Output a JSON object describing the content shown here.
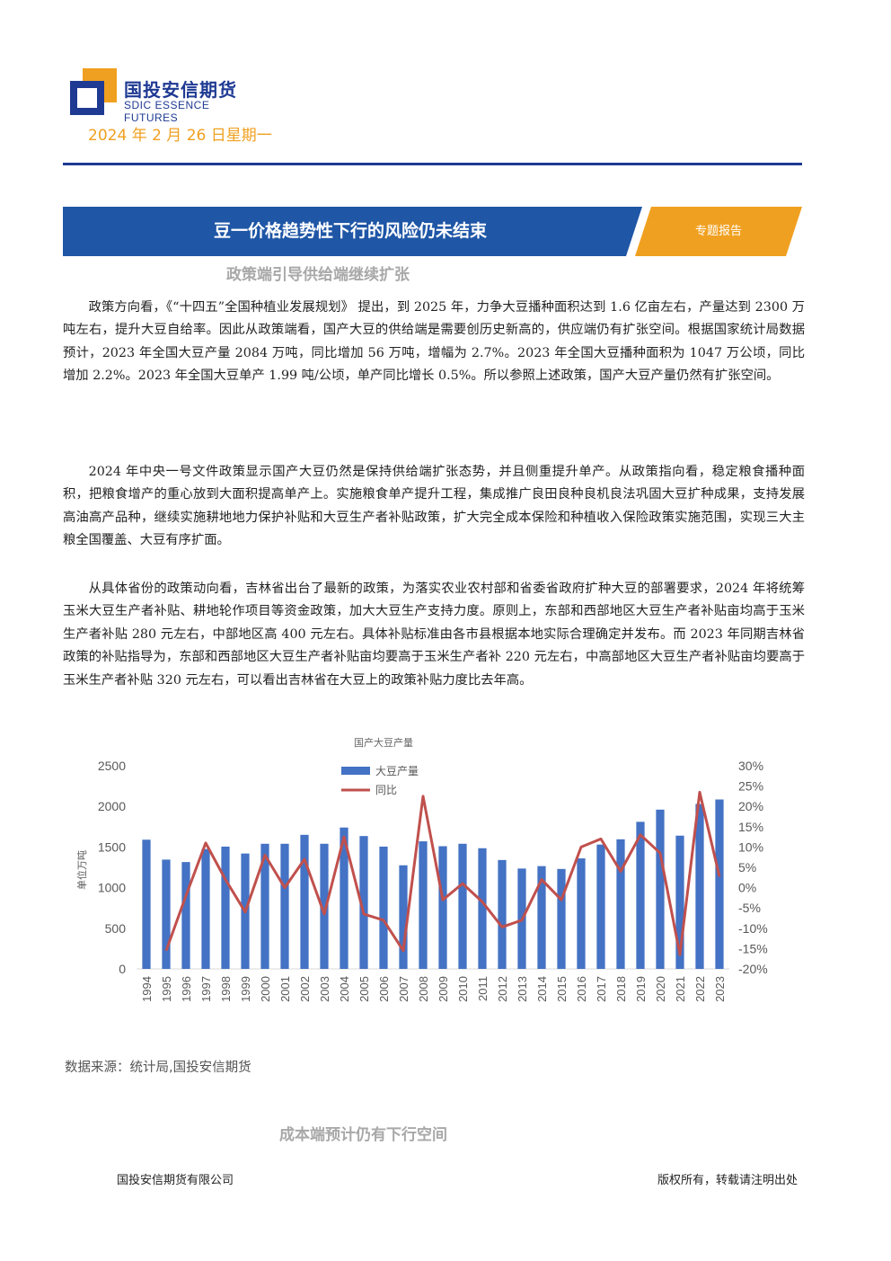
{
  "header": {
    "company_cn": "国投安信期货",
    "company_en": "SDIC ESSENCE FUTURES",
    "date": "2024 年 2 月 26 日星期一"
  },
  "banner": {
    "title": "豆一价格趋势性下行的风险仍未结束",
    "tag": "专题报告"
  },
  "sections": [
    {
      "heading": "政策端引导供给端继续扩张"
    },
    {
      "heading": "成本端预计仍有下行空间"
    }
  ],
  "paragraphs": [
    "政策方向看，《“十四五”全国种植业发展规划》 提出，到 2025 年，力争大豆播种面积达到 1.6 亿亩左右，产量达到 2300 万吨左右，提升大豆自给率。因此从政策端看，国产大豆的供给端是需要创历史新高的，供应端仍有扩张空间。根据国家统计局数据预计，2023 年全国大豆产量 2084 万吨，同比增加 56 万吨，增幅为 2.7%。2023 年全国大豆播种面积为 1047 万公顷，同比增加 2.2%。2023 年全国大豆单产 1.99 吨/公顷，单产同比增长 0.5%。所以参照上述政策，国产大豆产量仍然有扩张空间。",
    "2024 年中央一号文件政策显示国产大豆仍然是保持供给端扩张态势，并且侧重提升单产。从政策指向看，稳定粮食播种面积，把粮食增产的重心放到大面积提高单产上。实施粮食单产提升工程，集成推广良田良种良机良法巩固大豆扩种成果，支持发展高油高产品种，继续实施耕地地力保护补贴和大豆生产者补贴政策，扩大完全成本保险和种植收入保险政策实施范围，实现三大主粮全国覆盖、大豆有序扩面。",
    "从具体省份的政策动向看，吉林省出台了最新的政策，为落实农业农村部和省委省政府扩种大豆的部署要求，2024 年将统筹玉米大豆生产者补贴、耕地轮作项目等资金政策，加大大豆生产支持力度。原则上，东部和西部地区大豆生产者补贴亩均高于玉米生产者补贴 280 元左右，中部地区高 400 元左右。具体补贴标准由各市县根据本地实际合理确定并发布。而 2023 年同期吉林省政策的补贴指导为，东部和西部地区大豆生产者补贴亩均要高于玉米生产者补 220 元左右，中高部地区大豆生产者补贴亩均要高于玉米生产者补贴 320 元左右，可以看出吉林省在大豆上的政策补贴力度比去年高。"
  ],
  "chart_data": {
    "type": "bar",
    "title": "国产大豆产量",
    "ylabel": "单位万吨",
    "y2label": "",
    "ylim": [
      0,
      2500
    ],
    "y2lim": [
      -0.2,
      0.3
    ],
    "yticks": [
      "2500",
      "2000",
      "1500",
      "1000",
      "500",
      "0"
    ],
    "y2ticks": [
      "30%",
      "25%",
      "20%",
      "15%",
      "10%",
      "5%",
      "0%",
      "-5%",
      "-10%",
      "-15%",
      "-20%"
    ],
    "legend_position": "top-left",
    "categories": [
      "1994",
      "1995",
      "1996",
      "1997",
      "1998",
      "1999",
      "2000",
      "2001",
      "2002",
      "2003",
      "2004",
      "2005",
      "2006",
      "2007",
      "2008",
      "2009",
      "2010",
      "2011",
      "2012",
      "2013",
      "2014",
      "2015",
      "2016",
      "2017",
      "2018",
      "2019",
      "2020",
      "2021",
      "2022",
      "2023"
    ],
    "series": [
      {
        "name": "大豆产量",
        "kind": "bar",
        "axis": "left",
        "color": "#4472c4",
        "values": [
          1590,
          1345,
          1315,
          1475,
          1505,
          1420,
          1540,
          1540,
          1650,
          1540,
          1740,
          1635,
          1505,
          1275,
          1570,
          1510,
          1540,
          1485,
          1340,
          1235,
          1265,
          1230,
          1360,
          1530,
          1595,
          1810,
          1960,
          1640,
          2030,
          2085
        ]
      },
      {
        "name": "同比",
        "kind": "line",
        "axis": "right",
        "color": "#c0504d",
        "values": [
          null,
          -0.155,
          -0.02,
          0.11,
          0.02,
          -0.06,
          0.08,
          0.0,
          0.07,
          -0.065,
          0.125,
          -0.065,
          -0.08,
          -0.155,
          0.225,
          -0.03,
          0.01,
          -0.035,
          -0.097,
          -0.08,
          0.02,
          -0.03,
          0.1,
          0.12,
          0.04,
          0.13,
          0.085,
          -0.165,
          0.235,
          0.027
        ]
      }
    ]
  },
  "source": "数据来源：统计局,国投安信期货",
  "footer": {
    "left": "国投安信期货有限公司",
    "right": "版权所有，转载请注明出处"
  }
}
